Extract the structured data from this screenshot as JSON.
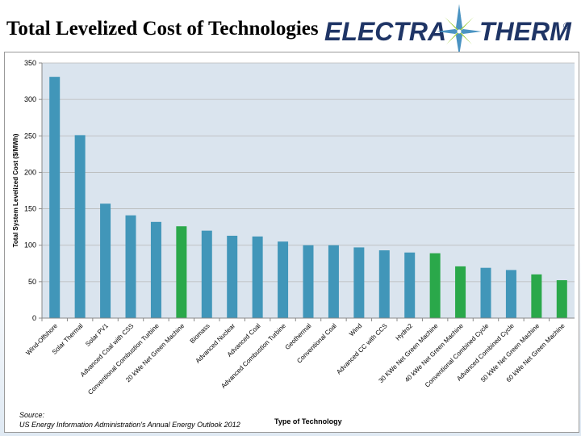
{
  "header": {
    "title": "Total Levelized Cost of Technologies"
  },
  "logo": {
    "text_left": "ELECTRA",
    "text_right": "THERM",
    "mark": "®",
    "colors": {
      "text": "#1f3566",
      "star": "#4a93c2",
      "star_accent": "#9ccd3a"
    }
  },
  "source": {
    "label": "Source:",
    "citation": "US Energy Information Administration's Annual Energy Outlook 2012"
  },
  "chart_data": {
    "type": "bar",
    "title": "",
    "xlabel": "Type of Technology",
    "ylabel": "Total System Levelized Cost ($/MWh)",
    "ylim": [
      0,
      350
    ],
    "yticks": [
      0,
      50,
      100,
      150,
      200,
      250,
      300,
      350
    ],
    "grid": true,
    "categories": [
      "Wind-Offshore",
      "Solar Thermal",
      "Solar PV1",
      "Advanced Coal with CSS",
      "Conventional Combustion Turbine",
      "20 kWe Net Green Machine",
      "Biomass",
      "Advanced Nuclear",
      "Advanced Coal",
      "Advanced Combustion Turbine",
      "Geothermal",
      "Conventional Coal",
      "Wind",
      "Advanced CC with CCS",
      "Hydro2",
      "30 KWe Net Green Machine",
      "40 kWe Net Green Machine",
      "Conventional Combined Cycle",
      "Advanced Combined Cycle",
      "50 kWe Net Green Machine",
      "60 kWe Net Green Machine"
    ],
    "values": [
      331,
      251,
      157,
      141,
      132,
      126,
      120,
      113,
      112,
      105,
      100,
      100,
      97,
      93,
      90,
      89,
      71,
      69,
      66,
      60,
      52
    ],
    "highlight": [
      false,
      false,
      false,
      false,
      false,
      true,
      false,
      false,
      false,
      false,
      false,
      false,
      false,
      false,
      false,
      true,
      true,
      false,
      false,
      true,
      true
    ],
    "colors": {
      "bar": "#4196b9",
      "highlight": "#2aa84a",
      "grid": "#b8b8b8",
      "plot_bg": "#dae4ee"
    }
  }
}
